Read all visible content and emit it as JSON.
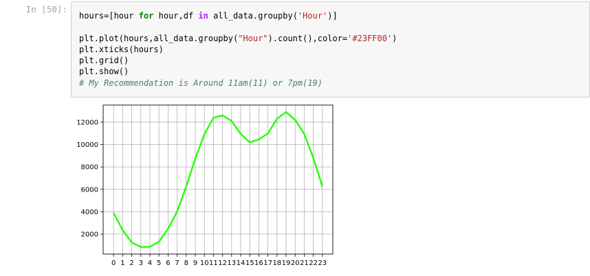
{
  "cell": {
    "prompt": "In [50]:",
    "code_lines": [
      {
        "parts": [
          {
            "t": "hours=[hour ",
            "c": ""
          },
          {
            "t": "for",
            "c": "kw"
          },
          {
            "t": " hour,df ",
            "c": ""
          },
          {
            "t": "in",
            "c": "kw-in"
          },
          {
            "t": " all_data.groupby(",
            "c": ""
          },
          {
            "t": "'Hour'",
            "c": "str"
          },
          {
            "t": ")]",
            "c": ""
          }
        ]
      },
      {
        "parts": []
      },
      {
        "parts": [
          {
            "t": "plt.plot(hours,all_data.groupby(",
            "c": ""
          },
          {
            "t": "\"Hour\"",
            "c": "str"
          },
          {
            "t": ").count(),color=",
            "c": ""
          },
          {
            "t": "'#23FF00'",
            "c": "str"
          },
          {
            "t": ")",
            "c": ""
          }
        ]
      },
      {
        "parts": [
          {
            "t": "plt.xticks(hours)",
            "c": ""
          }
        ]
      },
      {
        "parts": [
          {
            "t": "plt.grid()",
            "c": ""
          }
        ]
      },
      {
        "parts": [
          {
            "t": "plt.show()",
            "c": ""
          }
        ]
      },
      {
        "parts": [
          {
            "t": "# My Recommendation is Around 11am(11) or 7pm(19)",
            "c": "cmt"
          }
        ]
      }
    ]
  },
  "chart_data": {
    "type": "line",
    "title": "",
    "xlabel": "",
    "ylabel": "",
    "x": [
      0,
      1,
      2,
      3,
      4,
      5,
      6,
      7,
      8,
      9,
      10,
      11,
      12,
      13,
      14,
      15,
      16,
      17,
      18,
      19,
      20,
      21,
      22,
      23
    ],
    "series": [
      {
        "color": "#23FF00",
        "values": [
          3900,
          2350,
          1250,
          850,
          860,
          1320,
          2480,
          4010,
          6250,
          8750,
          10900,
          12400,
          12600,
          12100,
          10950,
          10200,
          10450,
          11000,
          12300,
          12900,
          12200,
          10950,
          8800,
          6250
        ]
      }
    ],
    "xticks": [
      "0",
      "1",
      "2",
      "3",
      "4",
      "5",
      "6",
      "7",
      "8",
      "9",
      "10",
      "11",
      "12",
      "13",
      "14",
      "15",
      "16",
      "17",
      "18",
      "19",
      "20",
      "21",
      "22",
      "23"
    ],
    "yticks": [
      2000,
      4000,
      6000,
      8000,
      10000,
      12000
    ],
    "ytick_labels": [
      "2000",
      "4000",
      "6000",
      "8000",
      "10000",
      "12000"
    ],
    "xlim": [
      -1.15,
      24.15
    ],
    "ylim": [
      222,
      13528
    ],
    "grid": true
  }
}
